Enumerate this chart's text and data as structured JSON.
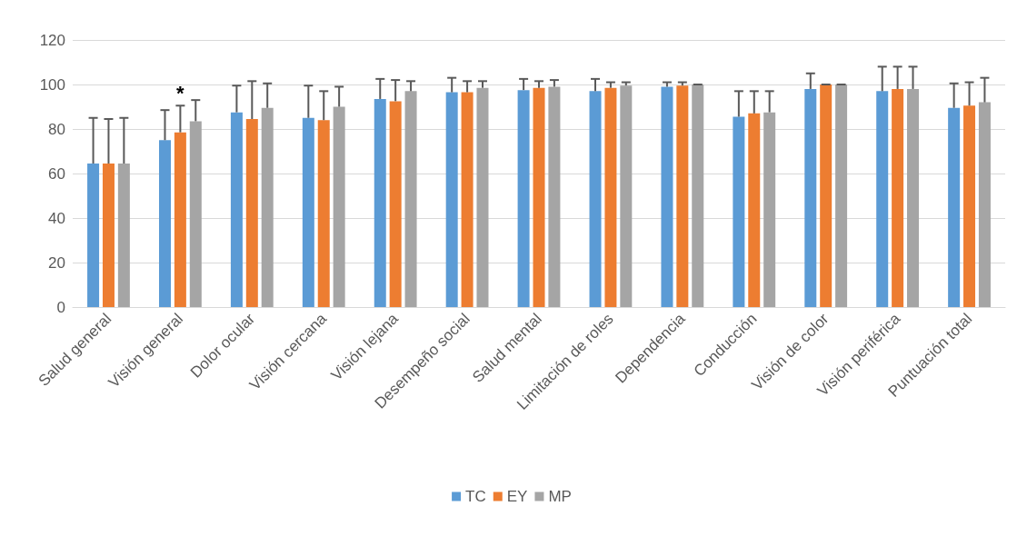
{
  "chart_data": {
    "type": "bar",
    "categories": [
      "Salud general",
      "Visión general",
      "Dolor ocular",
      "Visión cercana",
      "Visión lejana",
      "Desempeño social",
      "Salud mental",
      "Limitación de roles",
      "Dependencia",
      "Conducción",
      "Visión de color",
      "Visión periférica",
      "Puntuación total"
    ],
    "series": [
      {
        "name": "TC",
        "color": "#5b9bd5",
        "values": [
          64.5,
          75,
          87.5,
          85,
          93.5,
          96.5,
          97.5,
          97,
          99,
          85.5,
          98,
          97,
          89.5
        ],
        "errors": [
          [
            64.5,
            85
          ],
          [
            75,
            88.5
          ],
          [
            87.5,
            99.5
          ],
          [
            85,
            99.5
          ],
          [
            93.5,
            102.5
          ],
          [
            96.5,
            103
          ],
          [
            97.5,
            102.5
          ],
          [
            97,
            102.5
          ],
          [
            99,
            101
          ],
          [
            85.5,
            97
          ],
          [
            98,
            105
          ],
          [
            97,
            108
          ],
          [
            89.5,
            100.5
          ]
        ]
      },
      {
        "name": "EY",
        "color": "#ed7d31",
        "values": [
          64.5,
          78.5,
          84.5,
          84,
          92.5,
          96.5,
          98.5,
          98.5,
          99.5,
          87,
          100,
          98,
          90.5
        ],
        "errors": [
          [
            64.5,
            84.5
          ],
          [
            78.5,
            90.5
          ],
          [
            84.5,
            101.5
          ],
          [
            84,
            97
          ],
          [
            92.5,
            102
          ],
          [
            96.5,
            101.5
          ],
          [
            98.5,
            101.5
          ],
          [
            98.5,
            101
          ],
          [
            99.5,
            101
          ],
          [
            87,
            97
          ],
          [
            100,
            100
          ],
          [
            98,
            108
          ],
          [
            90.5,
            101
          ]
        ]
      },
      {
        "name": "MP",
        "color": "#a5a5a5",
        "values": [
          64.5,
          83.5,
          89.5,
          90,
          97,
          98.5,
          99,
          99.5,
          100,
          87.5,
          100,
          98,
          92
        ],
        "errors": [
          [
            64.5,
            85
          ],
          [
            83.5,
            93
          ],
          [
            89.5,
            100.5
          ],
          [
            90,
            99
          ],
          [
            97,
            101.5
          ],
          [
            98.5,
            101.5
          ],
          [
            99,
            102
          ],
          [
            99.5,
            101
          ],
          [
            100,
            100
          ],
          [
            87.5,
            97
          ],
          [
            100,
            100
          ],
          [
            98,
            108
          ],
          [
            92,
            103
          ]
        ]
      }
    ],
    "ylim": [
      0,
      120
    ],
    "yticks": [
      0,
      20,
      40,
      60,
      80,
      100,
      120
    ],
    "grid": "y",
    "legend": "bottom",
    "annotations": [
      "*"
    ]
  }
}
